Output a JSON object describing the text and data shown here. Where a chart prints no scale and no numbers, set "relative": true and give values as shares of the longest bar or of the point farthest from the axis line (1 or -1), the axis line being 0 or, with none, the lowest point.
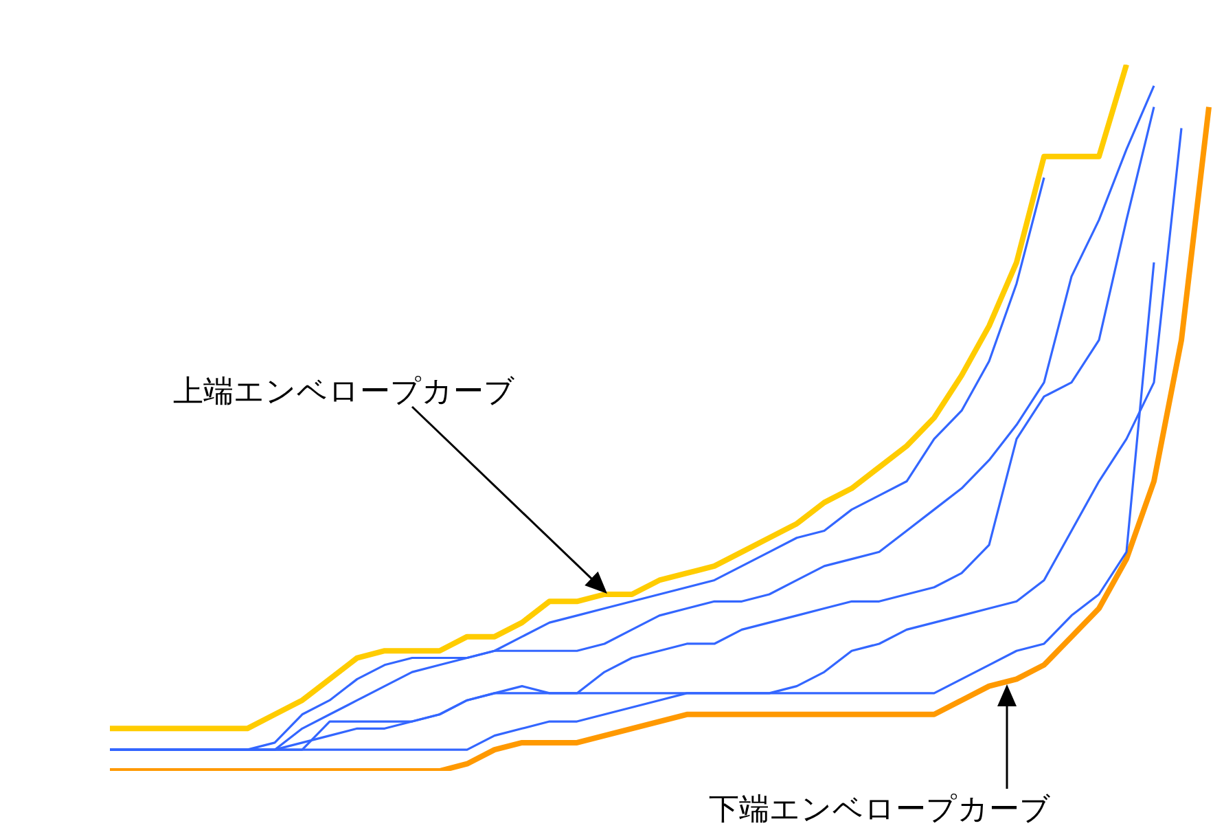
{
  "chart_data": {
    "type": "line",
    "relative": true,
    "marker": "none",
    "legend": false,
    "grid": false,
    "categories": [
      null,
      null,
      null,
      null,
      null,
      null,
      null,
      null,
      null,
      null,
      null,
      null,
      null,
      null,
      null,
      null,
      null,
      null,
      null,
      null,
      null,
      null,
      null,
      null,
      null,
      null,
      null,
      null,
      null,
      null,
      null,
      null,
      null,
      null,
      null,
      null,
      null,
      null,
      null,
      null,
      null
    ],
    "series": [
      {
        "color": "#ffcc00",
        "values": [
          0.06,
          0.06,
          0.06,
          0.06,
          0.06,
          0.06,
          0.08,
          0.1,
          0.13,
          0.16,
          0.17,
          0.17,
          0.17,
          0.19,
          0.19,
          0.21,
          0.24,
          0.24,
          0.25,
          0.25,
          0.27,
          0.28,
          0.29,
          0.31,
          0.33,
          0.35,
          0.38,
          0.4,
          0.43,
          0.46,
          0.5,
          0.56,
          0.63,
          0.72,
          0.87,
          0.87,
          0.87,
          1.0,
          null,
          null,
          null
        ]
      },
      {
        "color": "#ff9900",
        "values": [
          0,
          0,
          0,
          0,
          0,
          0,
          0,
          0,
          0,
          0,
          0,
          0,
          0,
          0.01,
          0.03,
          0.04,
          0.04,
          0.04,
          0.05,
          0.06,
          0.07,
          0.08,
          0.08,
          0.08,
          0.08,
          0.08,
          0.08,
          0.08,
          0.08,
          0.08,
          0.08,
          0.1,
          0.12,
          0.13,
          0.15,
          0.19,
          0.23,
          0.3,
          0.41,
          0.61,
          0.94
        ]
      },
      {
        "color": "#3366ff",
        "values": [
          0.03,
          0.03,
          0.03,
          0.03,
          0.03,
          0.03,
          0.04,
          0.08,
          0.1,
          0.13,
          0.15,
          0.16,
          0.16,
          0.16,
          0.17,
          0.19,
          0.21,
          0.22,
          0.23,
          0.24,
          0.25,
          0.26,
          0.27,
          0.29,
          0.31,
          0.33,
          0.34,
          0.37,
          0.39,
          0.41,
          0.47,
          0.51,
          0.58,
          0.69,
          0.84,
          null,
          null,
          null,
          null,
          null,
          null
        ]
      },
      {
        "color": "#3366ff",
        "values": [
          0.03,
          0.03,
          0.03,
          0.03,
          0.03,
          0.03,
          0.03,
          0.06,
          0.08,
          0.1,
          0.12,
          0.14,
          0.15,
          0.16,
          0.17,
          0.17,
          0.17,
          0.17,
          0.18,
          0.2,
          0.22,
          0.23,
          0.24,
          0.24,
          0.25,
          0.27,
          0.29,
          0.3,
          0.31,
          0.34,
          0.37,
          0.4,
          0.44,
          0.49,
          0.55,
          0.7,
          0.78,
          0.88,
          0.97,
          null,
          null
        ]
      },
      {
        "color": "#3366ff",
        "values": [
          0.03,
          0.03,
          0.03,
          0.03,
          0.03,
          0.03,
          0.03,
          0.03,
          0.07,
          0.07,
          0.07,
          0.07,
          0.08,
          0.1,
          0.11,
          0.12,
          0.11,
          0.11,
          0.14,
          0.16,
          0.17,
          0.18,
          0.18,
          0.2,
          0.21,
          0.22,
          0.23,
          0.24,
          0.24,
          0.25,
          0.26,
          0.28,
          0.32,
          0.47,
          0.53,
          0.55,
          0.61,
          0.78,
          0.94,
          null,
          null
        ]
      },
      {
        "color": "#3366ff",
        "values": [
          0.03,
          0.03,
          0.03,
          0.03,
          0.03,
          0.03,
          0.03,
          0.03,
          0.03,
          0.03,
          0.03,
          0.03,
          0.03,
          0.03,
          0.05,
          0.06,
          0.07,
          0.07,
          0.08,
          0.09,
          0.1,
          0.11,
          0.11,
          0.11,
          0.11,
          0.12,
          0.14,
          0.17,
          0.18,
          0.2,
          0.21,
          0.22,
          0.23,
          0.24,
          0.27,
          0.34,
          0.41,
          0.47,
          0.55,
          0.91,
          null
        ]
      },
      {
        "color": "#3366ff",
        "values": [
          0.03,
          0.03,
          0.03,
          0.03,
          0.03,
          0.03,
          0.03,
          0.04,
          0.05,
          0.06,
          0.06,
          0.07,
          0.08,
          0.1,
          0.11,
          0.11,
          0.11,
          0.11,
          0.11,
          0.11,
          0.11,
          0.11,
          0.11,
          0.11,
          0.11,
          0.11,
          0.11,
          0.11,
          0.11,
          0.11,
          0.11,
          0.13,
          0.15,
          0.17,
          0.18,
          0.22,
          0.25,
          0.31,
          0.72,
          null,
          null
        ]
      }
    ],
    "annotations": [
      "上端エンベロープカーブ",
      "下端エンベロープカーブ"
    ]
  }
}
